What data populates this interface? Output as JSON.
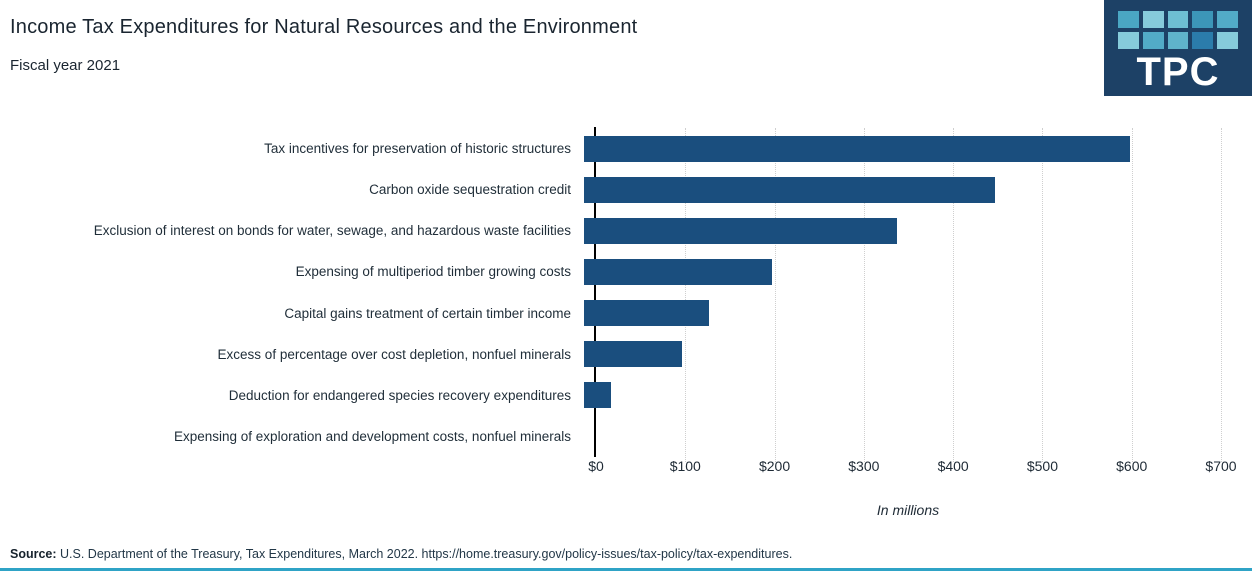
{
  "header": {
    "title": "Income Tax Expenditures for Natural Resources and the Environment",
    "subtitle": "Fiscal year 2021"
  },
  "logo": {
    "text": "TPC",
    "background": "#1d4166",
    "square_colors": [
      "#4aa6c3",
      "#86cbdb",
      "#6ebfd3",
      "#3c96b8",
      "#52abc7",
      "#86cbdb",
      "#52abc7",
      "#5fb3cb",
      "#2b7cab",
      "#86cbdb"
    ]
  },
  "chart_data": {
    "type": "bar",
    "orientation": "horizontal",
    "title": "Income Tax Expenditures for Natural Resources and the Environment",
    "subtitle": "Fiscal year 2021",
    "categories": [
      "Tax incentives for preservation of historic structures",
      "Carbon oxide sequestration credit",
      "Exclusion of interest on bonds for water, sewage, and hazardous waste facilities",
      "Expensing of multiperiod timber growing costs",
      "Capital gains treatment of certain timber income",
      "Excess of percentage over cost depletion, nonfuel minerals",
      "Deduction for endangered species recovery expenditures",
      "Expensing of exploration and development costs, nonfuel minerals"
    ],
    "values": [
      610,
      460,
      350,
      210,
      140,
      110,
      30,
      0
    ],
    "xlabel": "In millions",
    "ylabel": "",
    "xlim": [
      0,
      700
    ],
    "xtick_values": [
      0,
      100,
      200,
      300,
      400,
      500,
      600,
      700
    ],
    "xtick_labels": [
      "$0",
      "$100",
      "$200",
      "$300",
      "$400",
      "$500",
      "$600",
      "$700"
    ],
    "bar_color": "#1a4e7e",
    "grid": "vertical-dotted",
    "legend": "none"
  },
  "footer": {
    "source_label": "Source:",
    "source_text": " U.S. Department of the Treasury, Tax Expenditures, March 2022. https://home.treasury.gov/policy-issues/tax-policy/tax-expenditures."
  }
}
